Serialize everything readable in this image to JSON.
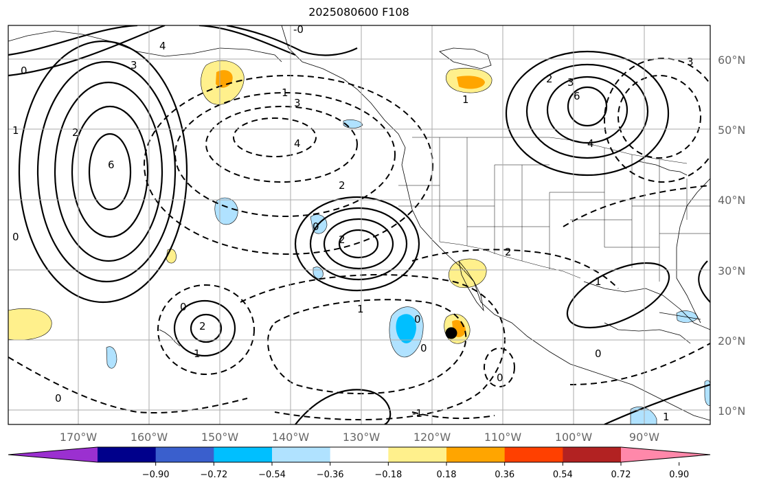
{
  "title": "2025080600 F108",
  "map": {
    "lat_labels": [
      "60°N",
      "50°N",
      "40°N",
      "30°N",
      "20°N",
      "10°N"
    ],
    "lon_labels": [
      "170°W",
      "160°W",
      "150°W",
      "140°W",
      "130°W",
      "120°W",
      "110°W",
      "100°W",
      "90°W"
    ],
    "contour_labels": [
      "-0",
      "0",
      "0",
      "0",
      "0",
      "0",
      "0",
      "0",
      "0",
      "0",
      "1",
      "1",
      "1",
      "1",
      "1",
      "1",
      "1",
      "2",
      "2",
      "2",
      "2",
      "2",
      "2",
      "3",
      "3",
      "3",
      "3",
      "4",
      "4",
      "4",
      "6",
      "6",
      "-1"
    ]
  },
  "colorbar": {
    "tick_labels": [
      "−0.90",
      "−0.72",
      "−0.54",
      "−0.36",
      "−0.18",
      "0.18",
      "0.36",
      "0.54",
      "0.72",
      "0.90"
    ],
    "colors": [
      "#9b30d0",
      "#00008b",
      "#3a5fcd",
      "#00bfff",
      "#b0e2ff",
      "#ffffff",
      "#fff08c",
      "#ffa500",
      "#ff4000",
      "#b22222",
      "#ff88aa"
    ]
  }
}
